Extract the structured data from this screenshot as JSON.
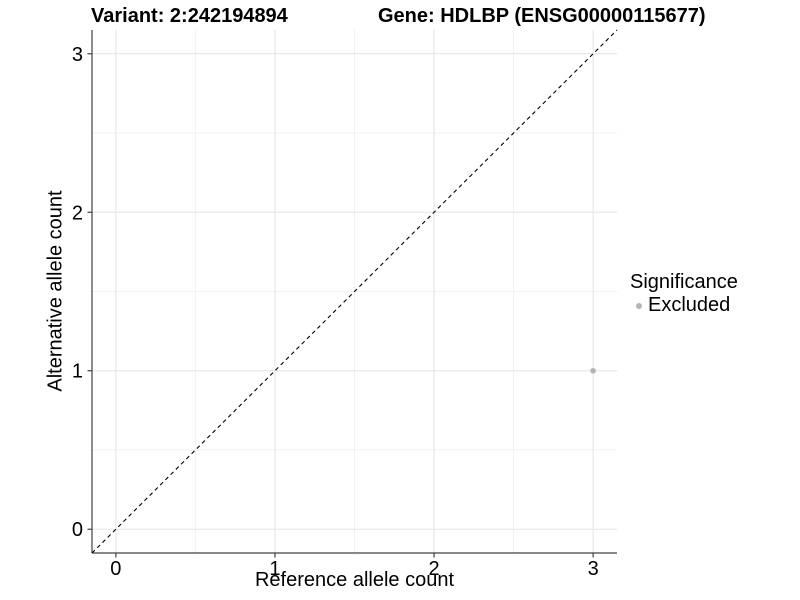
{
  "header": {
    "variant_title": "Variant: 2:242194894",
    "gene_title": "Gene: HDLBP (ENSG00000115677)"
  },
  "chart_data": {
    "type": "scatter",
    "xlabel": "Reference allele count",
    "ylabel": "Alternative allele count",
    "xlim": [
      0,
      3
    ],
    "ylim": [
      0,
      3
    ],
    "x_ticks": [
      0,
      1,
      2,
      3
    ],
    "y_ticks": [
      0,
      1,
      2,
      3
    ],
    "x_minor_ticks": [
      0.5,
      1.5,
      2.5
    ],
    "y_minor_ticks": [
      0.5,
      1.5,
      2.5
    ],
    "expansion_mult": 0.05,
    "grid": "major+minor",
    "reference_line": {
      "type": "identity",
      "slope": 1,
      "intercept": 0,
      "style": "dashed",
      "color": "#000000"
    },
    "series": [
      {
        "name": "Excluded",
        "color": "#b4b4b4",
        "points": [
          {
            "x": 3,
            "y": 1
          }
        ]
      }
    ],
    "legend": {
      "title": "Significance",
      "position": "right",
      "items": [
        {
          "label": "Excluded",
          "color": "#b4b4b4"
        }
      ]
    },
    "colors": {
      "grid_major": "#e4e4e4",
      "grid_minor": "#f1f1f1",
      "axis": "#404040",
      "tick_text": "#000000"
    }
  }
}
